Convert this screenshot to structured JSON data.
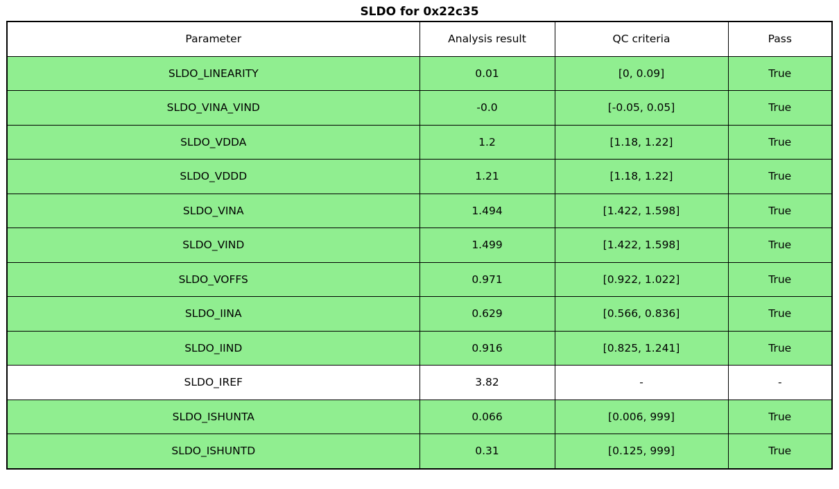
{
  "title": "SLDO for 0x22c35",
  "colors": {
    "pass_row_green": "#90ee90",
    "neutral_row_white": "#ffffff",
    "border_black": "#000000"
  },
  "chart_data": {
    "type": "table",
    "title": "SLDO for 0x22c35",
    "columns": [
      "Parameter",
      "Analysis result",
      "QC criteria",
      "Pass"
    ],
    "rows": [
      {
        "parameter": "SLDO_LINEARITY",
        "analysis_result": "0.01",
        "qc_criteria": "[0, 0.09]",
        "pass": "True",
        "highlight": true
      },
      {
        "parameter": "SLDO_VINA_VIND",
        "analysis_result": "-0.0",
        "qc_criteria": "[-0.05, 0.05]",
        "pass": "True",
        "highlight": true
      },
      {
        "parameter": "SLDO_VDDA",
        "analysis_result": "1.2",
        "qc_criteria": "[1.18, 1.22]",
        "pass": "True",
        "highlight": true
      },
      {
        "parameter": "SLDO_VDDD",
        "analysis_result": "1.21",
        "qc_criteria": "[1.18, 1.22]",
        "pass": "True",
        "highlight": true
      },
      {
        "parameter": "SLDO_VINA",
        "analysis_result": "1.494",
        "qc_criteria": "[1.422, 1.598]",
        "pass": "True",
        "highlight": true
      },
      {
        "parameter": "SLDO_VIND",
        "analysis_result": "1.499",
        "qc_criteria": "[1.422, 1.598]",
        "pass": "True",
        "highlight": true
      },
      {
        "parameter": "SLDO_VOFFS",
        "analysis_result": "0.971",
        "qc_criteria": "[0.922, 1.022]",
        "pass": "True",
        "highlight": true
      },
      {
        "parameter": "SLDO_IINA",
        "analysis_result": "0.629",
        "qc_criteria": "[0.566, 0.836]",
        "pass": "True",
        "highlight": true
      },
      {
        "parameter": "SLDO_IIND",
        "analysis_result": "0.916",
        "qc_criteria": "[0.825, 1.241]",
        "pass": "True",
        "highlight": true
      },
      {
        "parameter": "SLDO_IREF",
        "analysis_result": "3.82",
        "qc_criteria": "-",
        "pass": "-",
        "highlight": false
      },
      {
        "parameter": "SLDO_ISHUNTA",
        "analysis_result": "0.066",
        "qc_criteria": "[0.006, 999]",
        "pass": "True",
        "highlight": true
      },
      {
        "parameter": "SLDO_ISHUNTD",
        "analysis_result": "0.31",
        "qc_criteria": "[0.125, 999]",
        "pass": "True",
        "highlight": true
      }
    ]
  }
}
